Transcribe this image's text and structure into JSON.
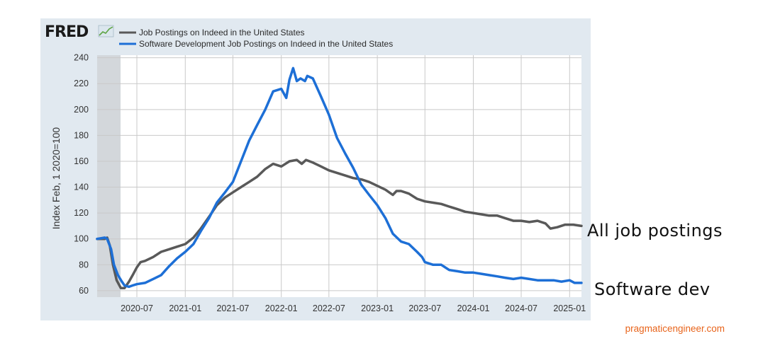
{
  "logo": {
    "text": "FRED"
  },
  "credit": "pragmaticengineer.com",
  "annotations": {
    "all_jobs": "All job postings",
    "software_dev": "Software dev"
  },
  "colors": {
    "panel_bg": "#e1e9f0",
    "plot_bg": "#ffffff",
    "grid": "#c9c9c9",
    "recession": "#d3d7db",
    "all_jobs": "#595959",
    "software_dev": "#1d6fd6",
    "credit": "#e8641b"
  },
  "chart_data": {
    "type": "line",
    "title": "",
    "xlabel": "",
    "ylabel": "Index Feb, 1 2020=100",
    "ylim": [
      55,
      242
    ],
    "xlim": [
      "2020-02-01",
      "2025-02-15"
    ],
    "y_ticks": [
      60,
      80,
      100,
      120,
      140,
      160,
      180,
      200,
      220,
      240
    ],
    "x_ticks": [
      "2020-07",
      "2021-01",
      "2021-07",
      "2022-01",
      "2022-07",
      "2023-01",
      "2023-07",
      "2024-01",
      "2024-07",
      "2025-01"
    ],
    "grid": true,
    "legend_position": "top-left",
    "recession_shading": [
      "2020-02-01",
      "2020-04-30"
    ],
    "series": [
      {
        "name": "Job Postings on Indeed in the United States",
        "color": "#595959",
        "points": [
          [
            "2020-02-01",
            100
          ],
          [
            "2020-03-01",
            100
          ],
          [
            "2020-03-10",
            101
          ],
          [
            "2020-03-20",
            95
          ],
          [
            "2020-04-01",
            80
          ],
          [
            "2020-04-15",
            68
          ],
          [
            "2020-05-01",
            62
          ],
          [
            "2020-05-15",
            62
          ],
          [
            "2020-06-01",
            67
          ],
          [
            "2020-06-15",
            72
          ],
          [
            "2020-07-01",
            78
          ],
          [
            "2020-07-15",
            82
          ],
          [
            "2020-08-01",
            83
          ],
          [
            "2020-09-01",
            86
          ],
          [
            "2020-10-01",
            90
          ],
          [
            "2020-11-01",
            92
          ],
          [
            "2020-12-01",
            94
          ],
          [
            "2021-01-01",
            96
          ],
          [
            "2021-02-01",
            101
          ],
          [
            "2021-03-01",
            108
          ],
          [
            "2021-04-01",
            117
          ],
          [
            "2021-05-01",
            126
          ],
          [
            "2021-06-01",
            132
          ],
          [
            "2021-07-01",
            136
          ],
          [
            "2021-08-01",
            140
          ],
          [
            "2021-09-01",
            144
          ],
          [
            "2021-10-01",
            148
          ],
          [
            "2021-11-01",
            154
          ],
          [
            "2021-12-01",
            158
          ],
          [
            "2022-01-01",
            156
          ],
          [
            "2022-02-01",
            160
          ],
          [
            "2022-03-01",
            161
          ],
          [
            "2022-03-20",
            158
          ],
          [
            "2022-04-05",
            161
          ],
          [
            "2022-05-01",
            159
          ],
          [
            "2022-06-01",
            156
          ],
          [
            "2022-07-01",
            153
          ],
          [
            "2022-08-01",
            151
          ],
          [
            "2022-09-01",
            149
          ],
          [
            "2022-10-01",
            147
          ],
          [
            "2022-11-01",
            146
          ],
          [
            "2022-12-01",
            144
          ],
          [
            "2023-01-01",
            141
          ],
          [
            "2023-02-01",
            138
          ],
          [
            "2023-03-01",
            134
          ],
          [
            "2023-03-15",
            137
          ],
          [
            "2023-04-01",
            137
          ],
          [
            "2023-05-01",
            135
          ],
          [
            "2023-06-01",
            131
          ],
          [
            "2023-07-01",
            129
          ],
          [
            "2023-08-01",
            128
          ],
          [
            "2023-09-01",
            127
          ],
          [
            "2023-10-01",
            125
          ],
          [
            "2023-11-01",
            123
          ],
          [
            "2023-12-01",
            121
          ],
          [
            "2024-01-01",
            120
          ],
          [
            "2024-02-01",
            119
          ],
          [
            "2024-03-01",
            118
          ],
          [
            "2024-04-01",
            118
          ],
          [
            "2024-05-01",
            116
          ],
          [
            "2024-06-01",
            114
          ],
          [
            "2024-07-01",
            114
          ],
          [
            "2024-08-01",
            113
          ],
          [
            "2024-09-01",
            114
          ],
          [
            "2024-10-01",
            112
          ],
          [
            "2024-10-20",
            108
          ],
          [
            "2024-11-15",
            109
          ],
          [
            "2024-12-15",
            111
          ],
          [
            "2025-01-15",
            111
          ],
          [
            "2025-02-15",
            110
          ]
        ]
      },
      {
        "name": "Software Development Job Postings on Indeed in the United States",
        "color": "#1d6fd6",
        "points": [
          [
            "2020-02-01",
            100
          ],
          [
            "2020-03-01",
            101
          ],
          [
            "2020-03-10",
            100
          ],
          [
            "2020-03-25",
            92
          ],
          [
            "2020-04-05",
            80
          ],
          [
            "2020-04-20",
            72
          ],
          [
            "2020-05-05",
            67
          ],
          [
            "2020-05-15",
            64
          ],
          [
            "2020-06-01",
            63
          ],
          [
            "2020-06-15",
            64
          ],
          [
            "2020-07-01",
            65
          ],
          [
            "2020-08-01",
            66
          ],
          [
            "2020-09-01",
            69
          ],
          [
            "2020-10-01",
            72
          ],
          [
            "2020-11-01",
            79
          ],
          [
            "2020-12-01",
            85
          ],
          [
            "2021-01-01",
            90
          ],
          [
            "2021-02-01",
            96
          ],
          [
            "2021-03-01",
            106
          ],
          [
            "2021-04-01",
            116
          ],
          [
            "2021-05-01",
            128
          ],
          [
            "2021-06-01",
            136
          ],
          [
            "2021-07-01",
            144
          ],
          [
            "2021-08-01",
            160
          ],
          [
            "2021-09-01",
            176
          ],
          [
            "2021-10-01",
            188
          ],
          [
            "2021-11-01",
            200
          ],
          [
            "2021-12-01",
            214
          ],
          [
            "2022-01-01",
            216
          ],
          [
            "2022-01-20",
            209
          ],
          [
            "2022-02-01",
            223
          ],
          [
            "2022-02-15",
            232
          ],
          [
            "2022-03-01",
            222
          ],
          [
            "2022-03-15",
            224
          ],
          [
            "2022-04-01",
            222
          ],
          [
            "2022-04-10",
            226
          ],
          [
            "2022-05-01",
            224
          ],
          [
            "2022-06-01",
            210
          ],
          [
            "2022-07-01",
            196
          ],
          [
            "2022-08-01",
            178
          ],
          [
            "2022-09-01",
            166
          ],
          [
            "2022-10-01",
            155
          ],
          [
            "2022-11-01",
            142
          ],
          [
            "2022-12-01",
            134
          ],
          [
            "2023-01-01",
            126
          ],
          [
            "2023-02-01",
            116
          ],
          [
            "2023-03-01",
            104
          ],
          [
            "2023-04-01",
            98
          ],
          [
            "2023-05-01",
            96
          ],
          [
            "2023-06-01",
            90
          ],
          [
            "2023-06-20",
            86
          ],
          [
            "2023-07-01",
            82
          ],
          [
            "2023-08-01",
            80
          ],
          [
            "2023-09-01",
            80
          ],
          [
            "2023-10-01",
            76
          ],
          [
            "2023-11-01",
            75
          ],
          [
            "2023-12-01",
            74
          ],
          [
            "2024-01-01",
            74
          ],
          [
            "2024-02-01",
            73
          ],
          [
            "2024-03-01",
            72
          ],
          [
            "2024-04-01",
            71
          ],
          [
            "2024-05-01",
            70
          ],
          [
            "2024-06-01",
            69
          ],
          [
            "2024-07-01",
            70
          ],
          [
            "2024-08-01",
            69
          ],
          [
            "2024-09-01",
            68
          ],
          [
            "2024-10-01",
            68
          ],
          [
            "2024-11-01",
            68
          ],
          [
            "2024-12-01",
            67
          ],
          [
            "2025-01-01",
            68
          ],
          [
            "2025-01-20",
            66
          ],
          [
            "2025-02-15",
            66
          ]
        ]
      }
    ]
  }
}
